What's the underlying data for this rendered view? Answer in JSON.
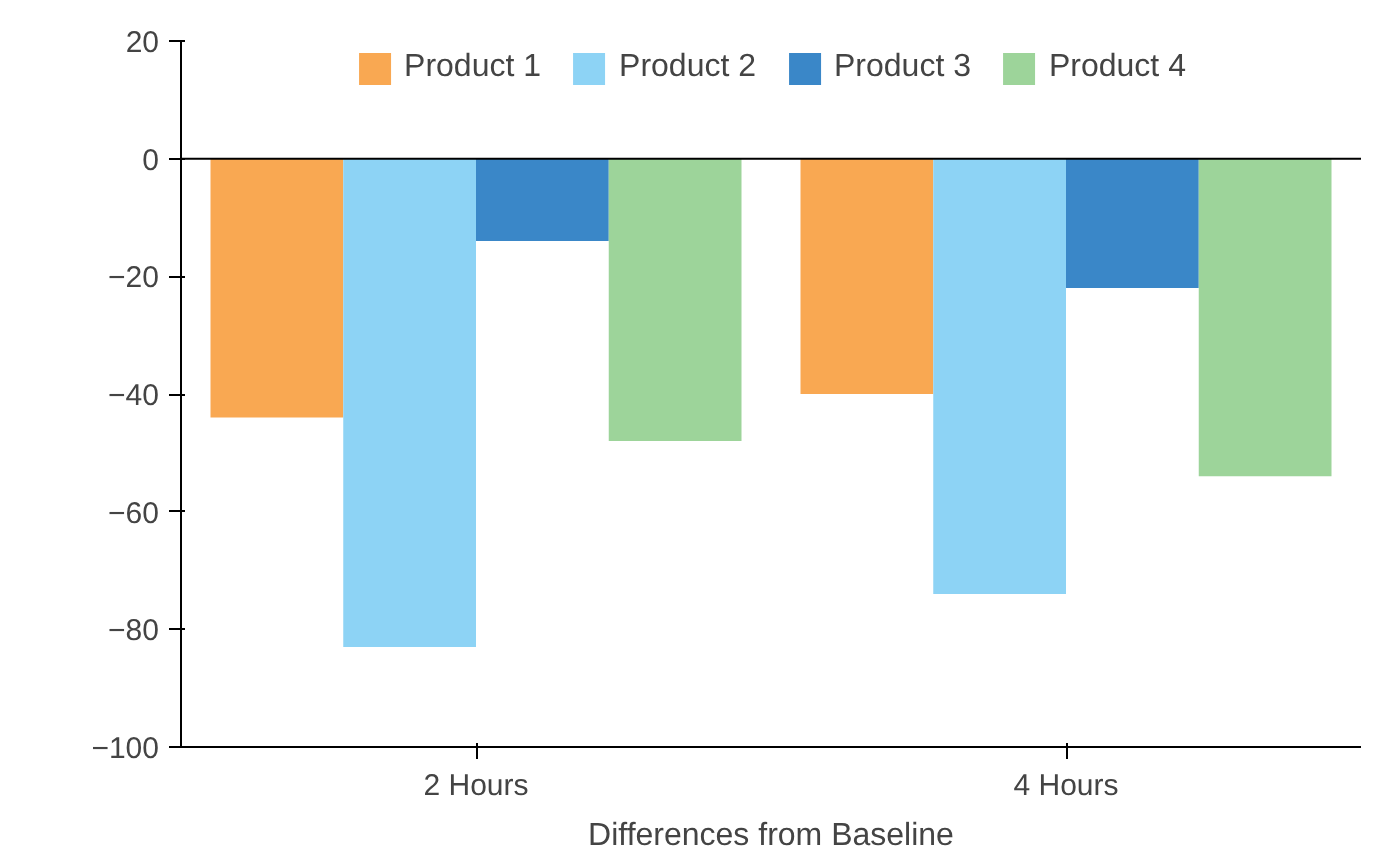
{
  "chart_data": {
    "type": "bar",
    "xlabel": "Differences from Baseline",
    "categories": [
      "2 Hours",
      "4 Hours"
    ],
    "series": [
      {
        "name": "Product 1",
        "color": "#f9a852",
        "values": [
          -44,
          -40
        ]
      },
      {
        "name": "Product 2",
        "color": "#8dd3f5",
        "values": [
          -83,
          -74
        ]
      },
      {
        "name": "Product 3",
        "color": "#3a87c8",
        "values": [
          -14,
          -22
        ]
      },
      {
        "name": "Product 4",
        "color": "#9dd49a",
        "values": [
          -48,
          -54
        ]
      }
    ],
    "ylim": [
      -100,
      20
    ],
    "yticks": [
      -100,
      -80,
      -60,
      -40,
      -20,
      0,
      20
    ],
    "ref_lines": [
      {
        "axis": "y",
        "value": 0,
        "color": "#000000"
      }
    ],
    "legend": "top"
  }
}
